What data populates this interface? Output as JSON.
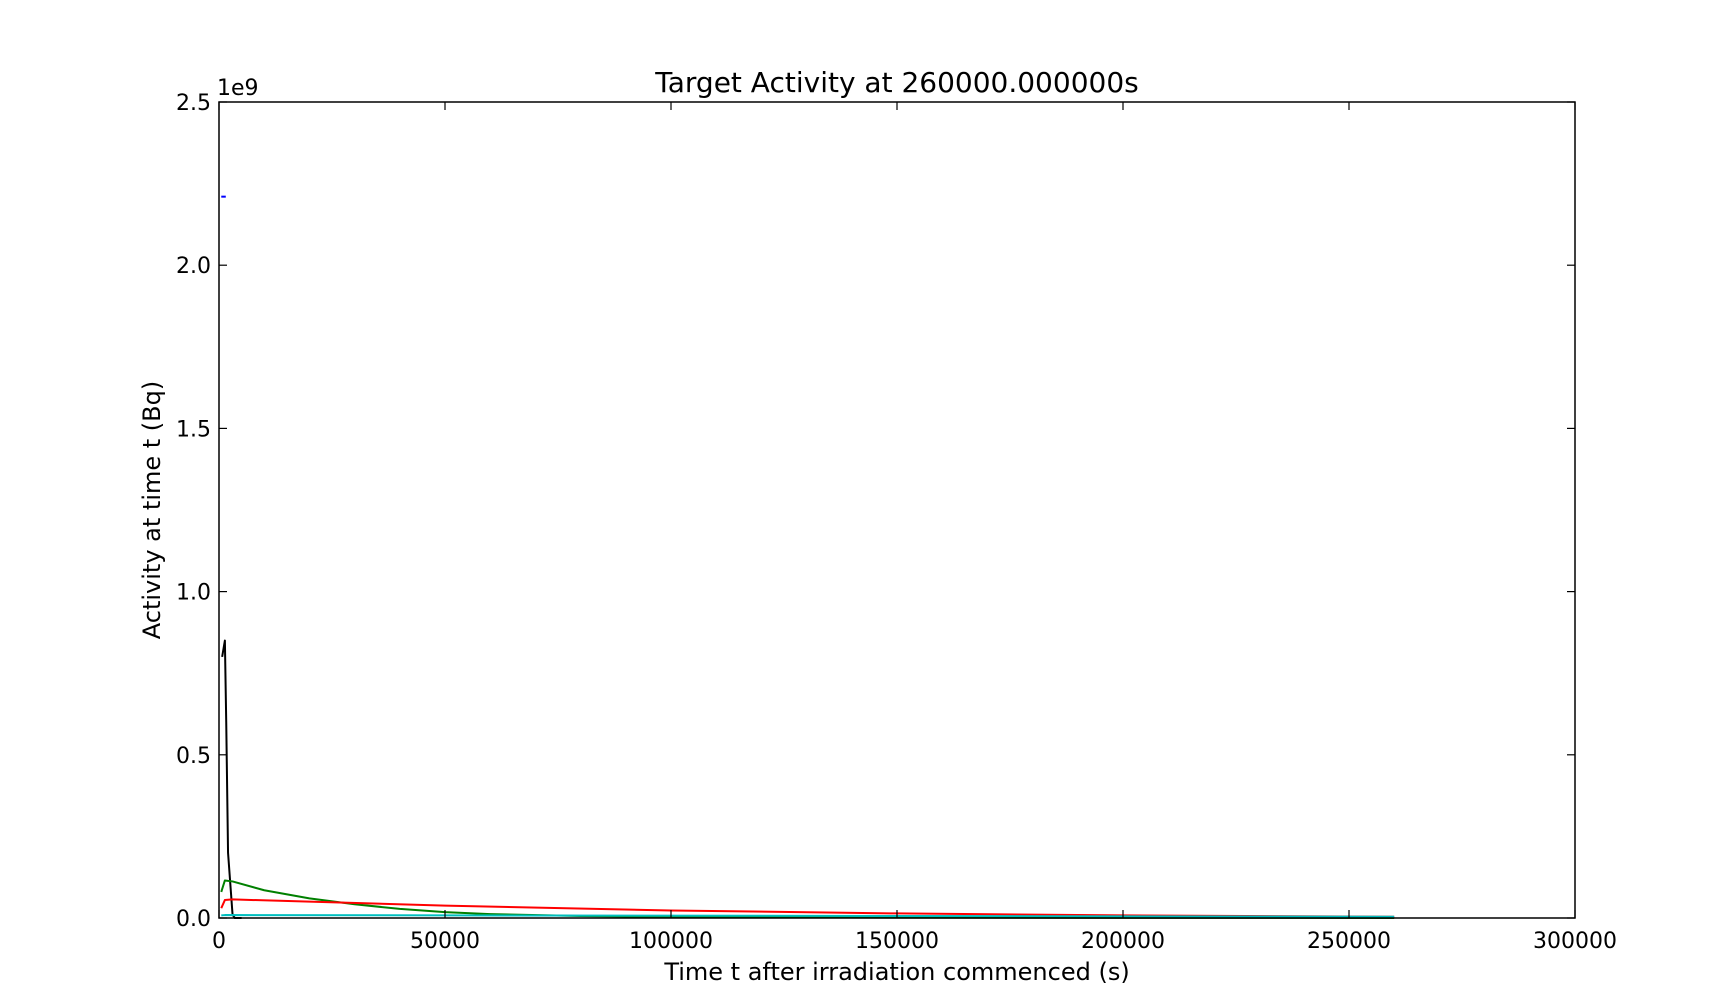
{
  "chart_data": {
    "type": "line",
    "title": "Target Activity at 260000.000000s",
    "xlabel": "Time t after irradiation commenced (s)",
    "ylabel": "Activity at time t (Bq)",
    "y_offset_text": "1e9",
    "xlim": [
      0,
      300000
    ],
    "ylim": [
      0,
      2500000000
    ],
    "xticks": [
      0,
      50000,
      100000,
      150000,
      200000,
      250000,
      300000
    ],
    "xtick_labels": [
      "0",
      "50000",
      "100000",
      "150000",
      "200000",
      "250000",
      "300000"
    ],
    "yticks": [
      0,
      500000000,
      1000000000,
      1500000000,
      2000000000,
      2500000000
    ],
    "ytick_labels": [
      "0.0",
      "0.5",
      "1.0",
      "1.5",
      "2.0",
      "2.5"
    ],
    "grid": false,
    "series": [
      {
        "color": "#0000ff",
        "x": [
          500,
          1500
        ],
        "y": [
          2210000000,
          2210000000
        ]
      },
      {
        "color": "#000000",
        "x": [
          700,
          1300,
          1600,
          2000,
          3000,
          3500,
          5000
        ],
        "y": [
          800000000,
          850000000,
          600000000,
          200000000,
          10000000,
          0,
          0
        ]
      },
      {
        "color": "#008000",
        "x": [
          500,
          1300,
          3000,
          10000,
          20000,
          30000,
          40000,
          50000,
          60000,
          80000,
          100000,
          150000,
          200000,
          260000
        ],
        "y": [
          80000000,
          115000000,
          112000000,
          85000000,
          60000000,
          42000000,
          28000000,
          18000000,
          12000000,
          6000000,
          3000000,
          1000000,
          500000,
          100000
        ]
      },
      {
        "color": "#ff0000",
        "x": [
          500,
          1300,
          3000,
          20000,
          50000,
          100000,
          150000,
          200000,
          260000
        ],
        "y": [
          30000000,
          55000000,
          57000000,
          50000000,
          38000000,
          23000000,
          14000000,
          8000000,
          4000000
        ]
      },
      {
        "color": "#00bfbf",
        "x": [
          500,
          1300,
          260000
        ],
        "y": [
          8000000,
          9000000,
          4000000
        ]
      }
    ]
  }
}
